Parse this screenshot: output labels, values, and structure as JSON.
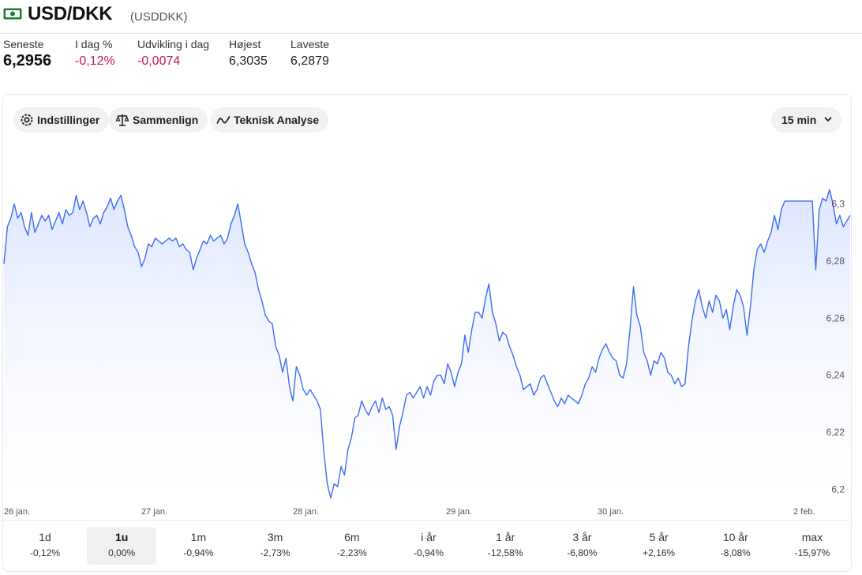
{
  "header": {
    "title": "USD/DKK",
    "ticker": "(USDDKK)",
    "icon": "banknote-icon"
  },
  "stats": [
    {
      "label": "Seneste",
      "value": "6,2956",
      "tone": "neutral"
    },
    {
      "label": "I dag %",
      "value": "-0,12%",
      "tone": "neg"
    },
    {
      "label": "Udvikling i dag",
      "value": "-0,0074",
      "tone": "neg"
    },
    {
      "label": "Højest",
      "value": "6,3035",
      "tone": "neutral"
    },
    {
      "label": "Laveste",
      "value": "6,2879",
      "tone": "neutral"
    }
  ],
  "toolbar": {
    "settings_label": "Indstillinger",
    "compare_label": "Sammenlign",
    "technical_label": "Teknisk Analyse",
    "interval_label": "15 min"
  },
  "colors": {
    "line": "#3b6ef0",
    "negative": "#c2185b",
    "positive": "#2e9a2e"
  },
  "chart_data": {
    "type": "area",
    "ylim": [
      6.195,
      6.305
    ],
    "yticks": [
      "6,3",
      "6,28",
      "6,26",
      "6,24",
      "6,22",
      "6,2"
    ],
    "ytick_values": [
      6.3,
      6.28,
      6.26,
      6.24,
      6.22,
      6.2
    ],
    "xticks": [
      "26 jan.",
      "27 jan.",
      "28 jan.",
      "29 jan.",
      "30 jan.",
      "2 feb."
    ],
    "grid": false,
    "y": [
      6.279,
      6.292,
      6.295,
      6.3,
      6.295,
      6.297,
      6.292,
      6.289,
      6.297,
      6.29,
      6.293,
      6.296,
      6.294,
      6.296,
      6.291,
      6.294,
      6.297,
      6.293,
      6.298,
      6.296,
      6.297,
      6.303,
      6.298,
      6.301,
      6.297,
      6.292,
      6.295,
      6.296,
      6.293,
      6.297,
      6.299,
      6.302,
      6.298,
      6.301,
      6.303,
      6.298,
      6.292,
      6.289,
      6.285,
      6.283,
      6.278,
      6.281,
      6.286,
      6.285,
      6.288,
      6.287,
      6.286,
      6.287,
      6.288,
      6.287,
      6.288,
      6.285,
      6.286,
      6.284,
      6.283,
      6.277,
      6.281,
      6.284,
      6.287,
      6.286,
      6.289,
      6.287,
      6.288,
      6.289,
      6.286,
      6.288,
      6.293,
      6.296,
      6.3,
      6.293,
      6.286,
      6.283,
      6.279,
      6.276,
      6.27,
      6.266,
      6.261,
      6.259,
      6.258,
      6.25,
      6.247,
      6.241,
      6.246,
      6.236,
      6.231,
      6.243,
      6.24,
      6.235,
      6.233,
      6.235,
      6.233,
      6.231,
      6.228,
      6.213,
      6.202,
      6.197,
      6.202,
      6.201,
      6.208,
      6.205,
      6.214,
      6.218,
      6.225,
      6.226,
      6.231,
      6.228,
      6.226,
      6.229,
      6.231,
      6.227,
      6.232,
      6.228,
      6.229,
      6.226,
      6.214,
      6.222,
      6.227,
      6.233,
      6.234,
      6.232,
      6.234,
      6.236,
      6.232,
      6.236,
      6.233,
      6.238,
      6.24,
      6.24,
      6.237,
      6.244,
      6.241,
      6.236,
      6.241,
      6.244,
      6.254,
      6.248,
      6.256,
      6.262,
      6.262,
      6.26,
      6.267,
      6.272,
      6.262,
      6.258,
      6.252,
      6.255,
      6.254,
      6.25,
      6.247,
      6.243,
      6.24,
      6.235,
      6.236,
      6.237,
      6.233,
      6.235,
      6.239,
      6.24,
      6.237,
      6.234,
      6.231,
      6.229,
      6.232,
      6.23,
      6.233,
      6.232,
      6.231,
      6.23,
      6.233,
      6.237,
      6.239,
      6.243,
      6.241,
      6.246,
      6.249,
      6.251,
      6.248,
      6.246,
      6.245,
      6.24,
      6.239,
      6.244,
      6.256,
      6.271,
      6.261,
      6.257,
      6.248,
      6.245,
      6.24,
      6.245,
      6.244,
      6.248,
      6.246,
      6.241,
      6.24,
      6.237,
      6.239,
      6.236,
      6.237,
      6.25,
      6.259,
      6.266,
      6.27,
      6.264,
      6.26,
      6.266,
      6.262,
      6.268,
      6.266,
      6.26,
      6.263,
      6.256,
      6.264,
      6.27,
      6.268,
      6.264,
      6.254,
      6.264,
      6.277,
      6.284,
      6.286,
      6.283,
      6.287,
      6.29,
      6.296,
      6.291,
      6.298,
      6.301,
      6.301,
      6.301,
      6.301,
      6.301,
      6.301,
      6.301,
      6.301,
      6.301,
      6.277,
      6.298,
      6.302,
      6.301,
      6.305,
      6.3,
      6.293,
      6.296,
      6.292,
      6.294,
      6.296
    ]
  },
  "periods": [
    {
      "label": "1d",
      "change": "-0,12%",
      "tone": "neg",
      "active": false
    },
    {
      "label": "1u",
      "change": "0,00%",
      "tone": "neutral",
      "active": true
    },
    {
      "label": "1m",
      "change": "-0,94%",
      "tone": "neg",
      "active": false
    },
    {
      "label": "3m",
      "change": "-2,73%",
      "tone": "neg",
      "active": false
    },
    {
      "label": "6m",
      "change": "-2,23%",
      "tone": "neg",
      "active": false
    },
    {
      "label": "i år",
      "change": "-0,94%",
      "tone": "neg",
      "active": false
    },
    {
      "label": "1 år",
      "change": "-12,58%",
      "tone": "neg",
      "active": false
    },
    {
      "label": "3 år",
      "change": "-6,80%",
      "tone": "neg",
      "active": false
    },
    {
      "label": "5 år",
      "change": "+2,16%",
      "tone": "pos",
      "active": false
    },
    {
      "label": "10 år",
      "change": "-8,08%",
      "tone": "neg",
      "active": false
    },
    {
      "label": "max",
      "change": "-15,97%",
      "tone": "neg",
      "active": false
    }
  ]
}
